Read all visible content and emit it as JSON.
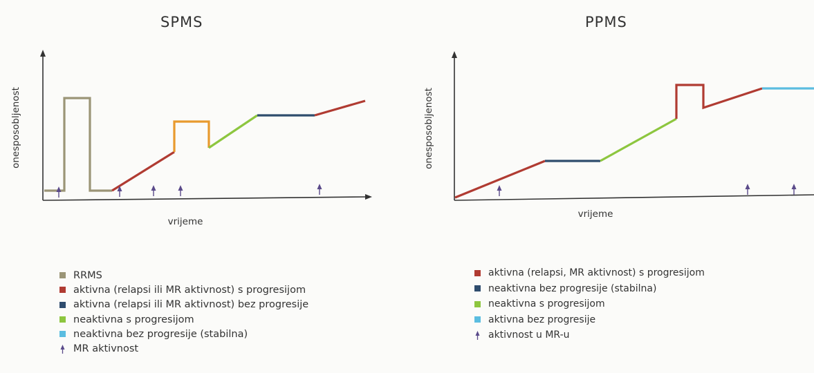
{
  "spms": {
    "title": "SPMS",
    "ylabel": "onesposobljenost",
    "xlabel": "vrijeme",
    "legend": [
      {
        "label": "RRMS",
        "color": "#9b9577",
        "kind": "swatch"
      },
      {
        "label": "aktivna (relapsi ili MR aktivnost) s progresijom",
        "color": "#b03b32",
        "kind": "swatch"
      },
      {
        "label": "aktivna (relapsi ili MR aktivnost) bez progresije",
        "color": "#2e4c6d",
        "kind": "swatch"
      },
      {
        "label": "neaktivna s progresijom",
        "color": "#8dc63f",
        "kind": "swatch"
      },
      {
        "label": "neaktivna bez progresije (stabilna)",
        "color": "#5bbde0",
        "kind": "swatch"
      },
      {
        "label": "MR aktivnost",
        "color": "#5a4a8a",
        "kind": "arrow"
      }
    ]
  },
  "ppms": {
    "title": "PPMS",
    "ylabel": "onesposobljenost",
    "xlabel": "vrijeme",
    "legend": [
      {
        "label": "aktivna (relapsi, MR aktivnost) s progresijom",
        "color": "#b03b32",
        "kind": "swatch"
      },
      {
        "label": "neaktivna bez progresije (stabilna)",
        "color": "#2e4c6d",
        "kind": "swatch"
      },
      {
        "label": "neaktivna s progresijom",
        "color": "#8dc63f",
        "kind": "swatch"
      },
      {
        "label": "aktivna bez progresije",
        "color": "#5bbde0",
        "kind": "swatch"
      },
      {
        "label": "aktivnost u MR-u",
        "color": "#5a4a8a",
        "kind": "arrow"
      }
    ]
  },
  "colors": {
    "rrms": "#9b9577",
    "active_progression": "#b03b32",
    "active_no_progression": "#2e4c6d",
    "inactive_progression": "#8dc63f",
    "inactive_stable": "#5bbde0",
    "relapse_box": "#e89a2e",
    "mr_arrow": "#5a4a8a",
    "axis": "#333333"
  }
}
